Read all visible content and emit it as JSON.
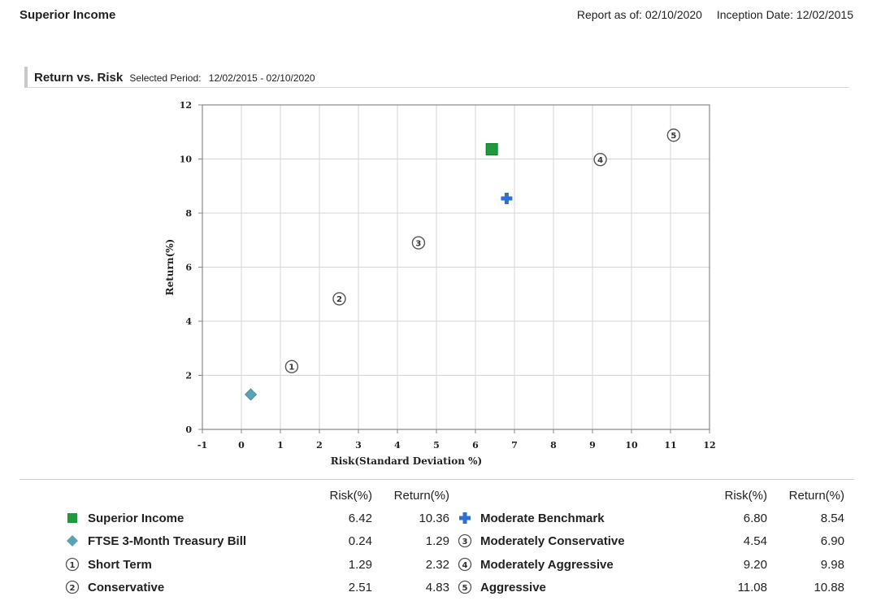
{
  "header": {
    "title": "Superior Income",
    "report_as_of": "Report as of: 02/10/2020",
    "inception_date": "Inception Date: 12/02/2015"
  },
  "section": {
    "title": "Return vs. Risk",
    "period_label": "Selected Period:",
    "period_value": "12/02/2015 - 02/10/2020"
  },
  "colors": {
    "superior": "#1e9a3c",
    "treasury": "#5aa3b5",
    "benchmark": "#2e6fd6",
    "circle": "#555555",
    "grid": "#d4d4d4",
    "frame": "#888888"
  },
  "chart_data": {
    "type": "scatter",
    "xlabel": "Risk(Standard Deviation %)",
    "ylabel": "Return(%)",
    "xlim": [
      -1,
      12
    ],
    "ylim": [
      0,
      12
    ],
    "x_ticks": [
      "-1",
      "0",
      "1",
      "2",
      "3",
      "4",
      "5",
      "6",
      "7",
      "8",
      "9",
      "10",
      "11",
      "12"
    ],
    "y_ticks": [
      "0",
      "2",
      "4",
      "6",
      "8",
      "10",
      "12"
    ],
    "grid": true,
    "points": [
      {
        "name": "Superior Income",
        "marker": "square",
        "risk": 6.42,
        "return": 10.36
      },
      {
        "name": "FTSE 3-Month Treasury Bill",
        "marker": "diamond",
        "risk": 0.24,
        "return": 1.29
      },
      {
        "name": "Short Term",
        "marker": "circle-1",
        "label": "1",
        "risk": 1.29,
        "return": 2.32
      },
      {
        "name": "Conservative",
        "marker": "circle-2",
        "label": "2",
        "risk": 2.51,
        "return": 4.83
      },
      {
        "name": "Moderate Benchmark",
        "marker": "plus",
        "risk": 6.8,
        "return": 8.54
      },
      {
        "name": "Moderately Conservative",
        "marker": "circle-3",
        "label": "3",
        "risk": 4.54,
        "return": 6.9
      },
      {
        "name": "Moderately Aggressive",
        "marker": "circle-4",
        "label": "4",
        "risk": 9.2,
        "return": 9.98
      },
      {
        "name": "Aggressive",
        "marker": "circle-5",
        "label": "5",
        "risk": 11.08,
        "return": 10.88
      }
    ]
  },
  "legend": {
    "risk_header": "Risk(%)",
    "return_header": "Return(%)",
    "left": [
      {
        "name": "Superior Income",
        "marker": "square",
        "risk": "6.42",
        "ret": "10.36"
      },
      {
        "name": "FTSE 3-Month Treasury Bill",
        "marker": "diamond",
        "risk": "0.24",
        "ret": "1.29"
      },
      {
        "name": "Short Term",
        "marker": "circle",
        "label": "1",
        "risk": "1.29",
        "ret": "2.32"
      },
      {
        "name": "Conservative",
        "marker": "circle",
        "label": "2",
        "risk": "2.51",
        "ret": "4.83"
      }
    ],
    "right": [
      {
        "name": "Moderate Benchmark",
        "marker": "plus",
        "risk": "6.80",
        "ret": "8.54"
      },
      {
        "name": "Moderately Conservative",
        "marker": "circle",
        "label": "3",
        "risk": "4.54",
        "ret": "6.90"
      },
      {
        "name": "Moderately Aggressive",
        "marker": "circle",
        "label": "4",
        "risk": "9.20",
        "ret": "9.98"
      },
      {
        "name": "Aggressive",
        "marker": "circle",
        "label": "5",
        "risk": "11.08",
        "ret": "10.88"
      }
    ]
  }
}
